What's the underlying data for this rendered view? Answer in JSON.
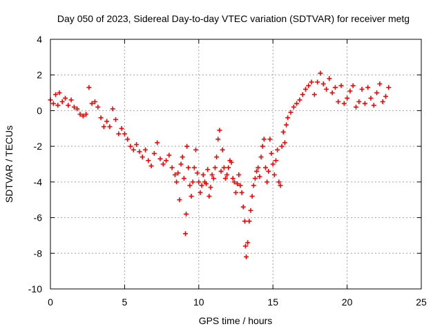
{
  "chart_data": {
    "type": "scatter",
    "title": "Day 050 of 2023, Sidereal Day-to-day VTEC variation (SDTVAR) for receiver metg",
    "xlabel": "GPS time / hours",
    "ylabel": "SDTVAR / TECUs",
    "xlim": [
      0,
      25
    ],
    "ylim": [
      -10,
      4
    ],
    "xticks": [
      0,
      5,
      10,
      15,
      20,
      25
    ],
    "yticks": [
      -10,
      -8,
      -6,
      -4,
      -2,
      0,
      2,
      4
    ],
    "grid": true,
    "marker": "plus",
    "color": "#ff0000",
    "series": [
      {
        "name": "SDTVAR",
        "points": [
          [
            0.0,
            0.6
          ],
          [
            0.2,
            0.4
          ],
          [
            0.35,
            0.9
          ],
          [
            0.5,
            0.3
          ],
          [
            0.6,
            1.0
          ],
          [
            0.8,
            0.5
          ],
          [
            1.0,
            0.7
          ],
          [
            1.2,
            0.3
          ],
          [
            1.4,
            0.6
          ],
          [
            1.6,
            0.2
          ],
          [
            1.8,
            0.1
          ],
          [
            2.0,
            -0.2
          ],
          [
            2.2,
            -0.3
          ],
          [
            2.4,
            -0.2
          ],
          [
            2.6,
            1.3
          ],
          [
            2.8,
            0.4
          ],
          [
            3.0,
            0.5
          ],
          [
            3.2,
            0.2
          ],
          [
            3.4,
            -0.4
          ],
          [
            3.6,
            -0.9
          ],
          [
            3.8,
            -0.6
          ],
          [
            4.0,
            -0.9
          ],
          [
            4.2,
            0.1
          ],
          [
            4.4,
            -0.5
          ],
          [
            4.6,
            -1.3
          ],
          [
            4.8,
            -1.0
          ],
          [
            5.0,
            -1.3
          ],
          [
            5.2,
            -1.6
          ],
          [
            5.4,
            -2.0
          ],
          [
            5.6,
            -2.2
          ],
          [
            5.8,
            -1.9
          ],
          [
            6.0,
            -2.3
          ],
          [
            6.2,
            -2.6
          ],
          [
            6.4,
            -2.2
          ],
          [
            6.6,
            -2.8
          ],
          [
            6.8,
            -3.1
          ],
          [
            7.0,
            -2.4
          ],
          [
            7.2,
            -1.8
          ],
          [
            7.4,
            -2.7
          ],
          [
            7.6,
            -3.0
          ],
          [
            7.8,
            -2.8
          ],
          [
            8.0,
            -2.5
          ],
          [
            8.2,
            -3.2
          ],
          [
            8.4,
            -3.6
          ],
          [
            8.5,
            -4.0
          ],
          [
            8.6,
            -3.5
          ],
          [
            8.7,
            -5.0
          ],
          [
            8.8,
            -3.0
          ],
          [
            8.9,
            -2.6
          ],
          [
            9.0,
            -3.8
          ],
          [
            9.1,
            -6.9
          ],
          [
            9.15,
            -5.8
          ],
          [
            9.2,
            -2.0
          ],
          [
            9.3,
            -3.2
          ],
          [
            9.4,
            -4.2
          ],
          [
            9.5,
            -4.8
          ],
          [
            9.6,
            -4.0
          ],
          [
            9.7,
            -3.2
          ],
          [
            9.8,
            -2.2
          ],
          [
            9.9,
            -3.5
          ],
          [
            10.0,
            -4.0
          ],
          [
            10.1,
            -4.6
          ],
          [
            10.2,
            -4.2
          ],
          [
            10.3,
            -3.6
          ],
          [
            10.4,
            -4.0
          ],
          [
            10.5,
            -4.1
          ],
          [
            10.6,
            -3.3
          ],
          [
            10.7,
            -4.8
          ],
          [
            10.8,
            -4.3
          ],
          [
            10.9,
            -3.6
          ],
          [
            11.0,
            -3.8
          ],
          [
            11.1,
            -3.2
          ],
          [
            11.2,
            -2.6
          ],
          [
            11.3,
            -1.6
          ],
          [
            11.4,
            -1.1
          ],
          [
            11.5,
            -3.4
          ],
          [
            11.6,
            -2.2
          ],
          [
            11.7,
            -3.2
          ],
          [
            11.8,
            -3.8
          ],
          [
            11.9,
            -3.6
          ],
          [
            12.0,
            -3.2
          ],
          [
            12.1,
            -2.8
          ],
          [
            12.2,
            -2.9
          ],
          [
            12.3,
            -3.8
          ],
          [
            12.4,
            -4.0
          ],
          [
            12.5,
            -4.6
          ],
          [
            12.6,
            -4.1
          ],
          [
            12.7,
            -3.6
          ],
          [
            12.8,
            -4.2
          ],
          [
            12.9,
            -4.6
          ],
          [
            13.0,
            -5.4
          ],
          [
            13.1,
            -6.2
          ],
          [
            13.15,
            -7.6
          ],
          [
            13.2,
            -8.2
          ],
          [
            13.3,
            -7.4
          ],
          [
            13.4,
            -6.2
          ],
          [
            13.5,
            -5.6
          ],
          [
            13.6,
            -4.8
          ],
          [
            13.7,
            -4.2
          ],
          [
            13.8,
            -3.8
          ],
          [
            13.9,
            -3.4
          ],
          [
            14.0,
            -3.2
          ],
          [
            14.1,
            -3.7
          ],
          [
            14.2,
            -2.6
          ],
          [
            14.3,
            -2.0
          ],
          [
            14.4,
            -1.6
          ],
          [
            14.5,
            -3.2
          ],
          [
            14.6,
            -4.0
          ],
          [
            14.7,
            -3.4
          ],
          [
            14.8,
            -1.6
          ],
          [
            14.9,
            -2.4
          ],
          [
            15.0,
            -3.0
          ],
          [
            15.1,
            -3.6
          ],
          [
            15.2,
            -2.8
          ],
          [
            15.3,
            -2.2
          ],
          [
            15.4,
            -4.0
          ],
          [
            15.5,
            -4.2
          ],
          [
            15.6,
            -2.0
          ],
          [
            15.7,
            -1.2
          ],
          [
            15.8,
            -1.8
          ],
          [
            15.9,
            -0.8
          ],
          [
            16.0,
            -0.4
          ],
          [
            16.2,
            -0.1
          ],
          [
            16.4,
            0.2
          ],
          [
            16.6,
            0.4
          ],
          [
            16.8,
            0.6
          ],
          [
            17.0,
            0.9
          ],
          [
            17.2,
            1.2
          ],
          [
            17.4,
            1.4
          ],
          [
            17.6,
            1.6
          ],
          [
            17.8,
            0.9
          ],
          [
            18.0,
            1.6
          ],
          [
            18.2,
            2.1
          ],
          [
            18.4,
            1.5
          ],
          [
            18.6,
            1.2
          ],
          [
            18.8,
            1.8
          ],
          [
            19.0,
            1.0
          ],
          [
            19.2,
            1.3
          ],
          [
            19.4,
            0.5
          ],
          [
            19.6,
            1.4
          ],
          [
            19.8,
            0.4
          ],
          [
            20.0,
            0.7
          ],
          [
            20.2,
            1.1
          ],
          [
            20.4,
            1.4
          ],
          [
            20.6,
            0.2
          ],
          [
            20.8,
            0.5
          ],
          [
            21.0,
            1.2
          ],
          [
            21.2,
            0.4
          ],
          [
            21.4,
            1.3
          ],
          [
            21.6,
            0.7
          ],
          [
            21.8,
            0.3
          ],
          [
            22.0,
            1.0
          ],
          [
            22.2,
            1.5
          ],
          [
            22.4,
            0.5
          ],
          [
            22.6,
            0.8
          ],
          [
            22.8,
            1.3
          ]
        ]
      }
    ]
  }
}
